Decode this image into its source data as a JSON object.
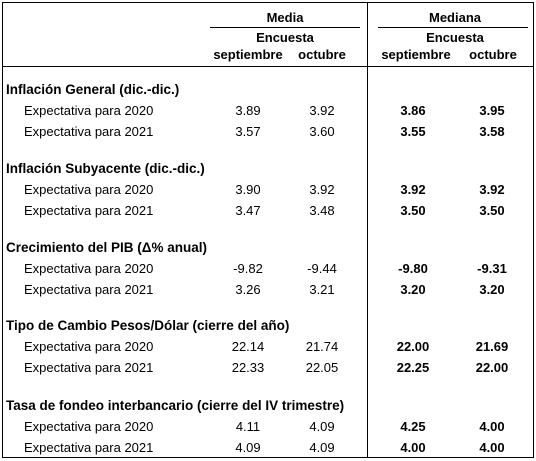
{
  "header": {
    "media": "Media",
    "mediana": "Mediana",
    "encuesta_media": "Encuesta",
    "encuesta_mediana": "Encuesta",
    "col_sep_media": "septiembre",
    "col_oct_media": "octubre",
    "col_sep_mediana": "septiembre",
    "col_oct_mediana": "octubre"
  },
  "sections": [
    {
      "title": "Inflación General (dic.-dic.)",
      "rows": [
        {
          "label": "Expectativa para 2020",
          "media_sep": "3.89",
          "media_oct": "3.92",
          "mediana_sep": "3.86",
          "mediana_oct": "3.95"
        },
        {
          "label": "Expectativa para 2021",
          "media_sep": "3.57",
          "media_oct": "3.60",
          "mediana_sep": "3.55",
          "mediana_oct": "3.58"
        }
      ]
    },
    {
      "title": "Inflación Subyacente (dic.-dic.)",
      "rows": [
        {
          "label": "Expectativa para 2020",
          "media_sep": "3.90",
          "media_oct": "3.92",
          "mediana_sep": "3.92",
          "mediana_oct": "3.92"
        },
        {
          "label": "Expectativa para 2021",
          "media_sep": "3.47",
          "media_oct": "3.48",
          "mediana_sep": "3.50",
          "mediana_oct": "3.50"
        }
      ]
    },
    {
      "title": "Crecimiento del PIB (Δ% anual)",
      "rows": [
        {
          "label": "Expectativa para 2020",
          "media_sep": "-9.82",
          "media_oct": "-9.44",
          "mediana_sep": "-9.80",
          "mediana_oct": "-9.31"
        },
        {
          "label": "Expectativa para 2021",
          "media_sep": "3.26",
          "media_oct": "3.21",
          "mediana_sep": "3.20",
          "mediana_oct": "3.20"
        }
      ]
    },
    {
      "title": "Tipo de Cambio Pesos/Dólar (cierre del año)",
      "rows": [
        {
          "label": "Expectativa para 2020",
          "media_sep": "22.14",
          "media_oct": "21.74",
          "mediana_sep": "22.00",
          "mediana_oct": "21.69"
        },
        {
          "label": "Expectativa para 2021",
          "media_sep": "22.33",
          "media_oct": "22.05",
          "mediana_sep": "22.25",
          "mediana_oct": "22.00"
        }
      ]
    },
    {
      "title": "Tasa de fondeo interbancario (cierre del IV trimestre)",
      "rows": [
        {
          "label": "Expectativa para 2020",
          "media_sep": "4.11",
          "media_oct": "4.09",
          "mediana_sep": "4.25",
          "mediana_oct": "4.00"
        },
        {
          "label": "Expectativa para 2021",
          "media_sep": "4.09",
          "media_oct": "4.09",
          "mediana_sep": "4.00",
          "mediana_oct": "4.00"
        }
      ]
    }
  ]
}
